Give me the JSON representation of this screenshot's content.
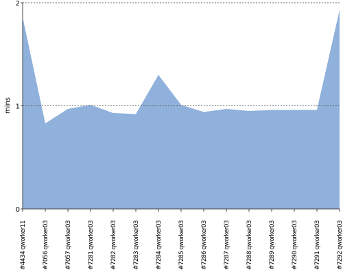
{
  "chart_data": {
    "type": "area",
    "y_label": "mins",
    "categories": [
      "#4434 qworker11",
      "#7056 qworker03",
      "#7057 qworker03",
      "#7281 qworker03",
      "#7282 qworker03",
      "#7283 qworker03",
      "#7284 qworker03",
      "#7285 qworker03",
      "#7286 qworker03",
      "#7287 qworker03",
      "#7288 qworker03",
      "#7289 qworker03",
      "#7290 qworker03",
      "#7291 qworker03",
      "#7292 qworker03"
    ],
    "values": [
      1.86,
      0.83,
      0.97,
      1.01,
      0.93,
      0.92,
      1.3,
      1.01,
      0.94,
      0.97,
      0.95,
      0.96,
      0.96,
      0.96,
      1.93
    ],
    "color": "#8fb1db",
    "ylim": [
      0,
      2
    ],
    "yticks": [
      0,
      1,
      2
    ],
    "grid": true
  }
}
